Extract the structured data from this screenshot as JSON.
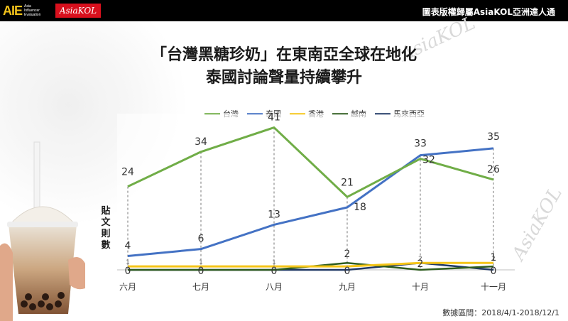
{
  "header": {
    "logo_aie": "AIE",
    "logo_aie_small": [
      "Asia",
      "Influencer",
      "Evaluation"
    ],
    "logo_asiakol": "AsiaKOL",
    "copyright": "圖表版權歸屬AsiaKOL亞洲達人通"
  },
  "watermark_text": "AsiaKOL",
  "footer": {
    "date_range": "數據區間：2018/4/1-2018/12/1"
  },
  "chart_data": {
    "type": "line",
    "title_line1": "「台灣黑糖珍奶」在東南亞全球在地化",
    "title_line2": "泰國討論聲量持續攀升",
    "ylabel": "貼文則數",
    "categories": [
      "六月",
      "七月",
      "八月",
      "九月",
      "十月",
      "十一月"
    ],
    "ylim": [
      0,
      45
    ],
    "legend_position": "top",
    "grid": false,
    "series": [
      {
        "name": "台灣",
        "color": "#70ad47",
        "values": [
          24,
          34,
          41,
          21,
          32,
          26
        ],
        "labels": [
          "24",
          "34",
          "41",
          "21",
          "32",
          "26"
        ]
      },
      {
        "name": "泰國",
        "color": "#4472c4",
        "values": [
          4,
          6,
          13,
          18,
          33,
          35
        ],
        "labels": [
          "4",
          "6",
          "13",
          "18",
          "33",
          "35"
        ]
      },
      {
        "name": "香港",
        "color": "#f5c518",
        "values": [
          1,
          1,
          1,
          1,
          2,
          2
        ],
        "labels": [
          "1",
          "1",
          "1",
          "",
          "2",
          "2"
        ]
      },
      {
        "name": "越南",
        "color": "#2e5c1e",
        "values": [
          0,
          0,
          0,
          2,
          0,
          1
        ],
        "labels": [
          "",
          "",
          "",
          "2",
          "",
          "1"
        ]
      },
      {
        "name": "馬來西亞",
        "color": "#1f3864",
        "values": [
          0,
          0,
          0,
          0,
          2,
          0
        ],
        "labels": [
          "0",
          "0",
          "0",
          "0",
          "2",
          "0"
        ]
      }
    ]
  }
}
